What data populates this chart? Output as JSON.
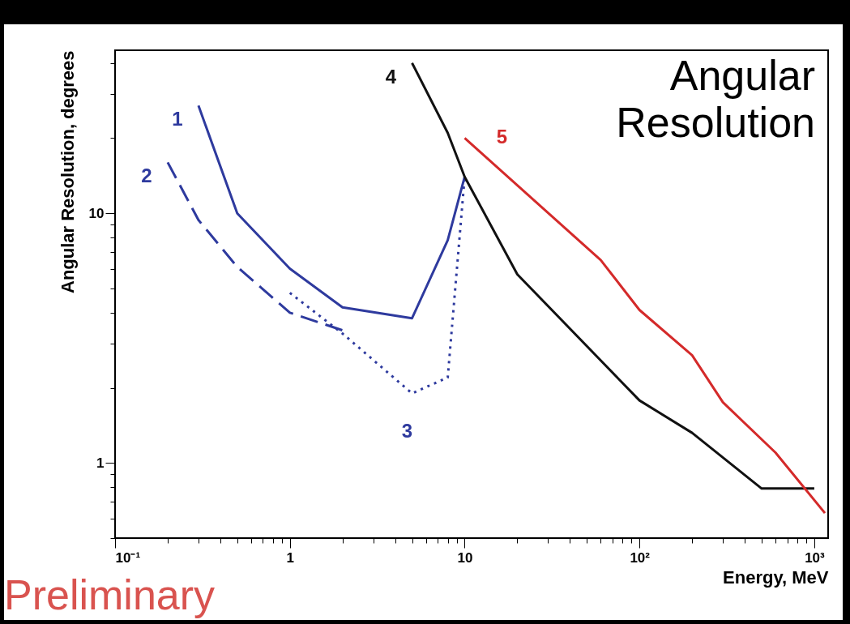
{
  "chart_data": {
    "type": "line",
    "title": "Angular Resolution",
    "xlabel": "Energy, MeV",
    "ylabel": "Angular Resolution, degrees",
    "log": "xy",
    "grid": false,
    "marker": "none",
    "xlim": [
      0.1,
      1200
    ],
    "ylim": [
      0.5,
      45
    ],
    "xticks": [
      {
        "value": 0.1,
        "label": "10⁻¹"
      },
      {
        "value": 0.2,
        "label": null
      },
      {
        "value": 0.3,
        "label": null
      },
      {
        "value": 0.4,
        "label": null
      },
      {
        "value": 0.5,
        "label": null
      },
      {
        "value": 0.6,
        "label": null
      },
      {
        "value": 0.7,
        "label": null
      },
      {
        "value": 0.8,
        "label": null
      },
      {
        "value": 0.9,
        "label": null
      },
      1,
      {
        "value": 2,
        "label": null
      },
      {
        "value": 3,
        "label": null
      },
      {
        "value": 4,
        "label": null
      },
      {
        "value": 5,
        "label": null
      },
      {
        "value": 6,
        "label": null
      },
      {
        "value": 7,
        "label": null
      },
      {
        "value": 8,
        "label": null
      },
      {
        "value": 9,
        "label": null
      },
      10,
      {
        "value": 20,
        "label": null
      },
      {
        "value": 30,
        "label": null
      },
      {
        "value": 40,
        "label": null
      },
      {
        "value": 50,
        "label": null
      },
      {
        "value": 60,
        "label": null
      },
      {
        "value": 70,
        "label": null
      },
      {
        "value": 80,
        "label": null
      },
      {
        "value": 90,
        "label": null
      },
      {
        "value": 100,
        "label": "10²"
      },
      {
        "value": 200,
        "label": null
      },
      {
        "value": 300,
        "label": null
      },
      {
        "value": 400,
        "label": null
      },
      {
        "value": 500,
        "label": null
      },
      {
        "value": 600,
        "label": null
      },
      {
        "value": 700,
        "label": null
      },
      {
        "value": 800,
        "label": null
      },
      {
        "value": 900,
        "label": null
      },
      {
        "value": 1000,
        "label": "10³"
      }
    ],
    "yticks": [
      {
        "value": 0.5,
        "label": null
      },
      {
        "value": 0.6,
        "label": null
      },
      {
        "value": 0.7,
        "label": null
      },
      {
        "value": 0.8,
        "label": null
      },
      {
        "value": 0.9,
        "label": null
      },
      1,
      {
        "value": 2,
        "label": null
      },
      {
        "value": 3,
        "label": null
      },
      {
        "value": 4,
        "label": null
      },
      {
        "value": 5,
        "label": null
      },
      {
        "value": 6,
        "label": null
      },
      {
        "value": 7,
        "label": null
      },
      {
        "value": 8,
        "label": null
      },
      {
        "value": 9,
        "label": null
      },
      10,
      {
        "value": 20,
        "label": null
      },
      {
        "value": 30,
        "label": null
      },
      {
        "value": 40,
        "label": null
      }
    ],
    "series": [
      {
        "name": "1",
        "color": "#2e3a9e",
        "line_style": "solid",
        "x": [
          0.3,
          0.5,
          1,
          2,
          5,
          8,
          10
        ],
        "values": [
          27,
          10,
          6,
          4.2,
          3.8,
          7.8,
          14
        ]
      },
      {
        "name": "2",
        "color": "#2e3a9e",
        "line_style": "dashed",
        "x": [
          0.2,
          0.3,
          0.5,
          1,
          2
        ],
        "values": [
          16,
          9.4,
          6.1,
          4,
          3.4
        ]
      },
      {
        "name": "3",
        "color": "#2e3a9e",
        "line_style": "dotted",
        "x": [
          1,
          2,
          5,
          8,
          10
        ],
        "values": [
          4.8,
          3.3,
          1.9,
          2.2,
          14
        ]
      },
      {
        "name": "4",
        "color": "#111111",
        "line_style": "solid",
        "x": [
          5,
          8,
          10,
          20,
          100,
          200,
          500,
          1000
        ],
        "values": [
          40,
          21,
          14,
          5.7,
          1.78,
          1.32,
          0.79,
          0.79
        ]
      },
      {
        "name": "5",
        "color": "#d42a2a",
        "line_style": "solid",
        "x": [
          10,
          60,
          100,
          200,
          300,
          600,
          1150
        ],
        "values": [
          20,
          6.5,
          4.1,
          2.7,
          1.75,
          1.1,
          0.63
        ]
      }
    ],
    "annotations": [
      "Preliminary"
    ]
  }
}
